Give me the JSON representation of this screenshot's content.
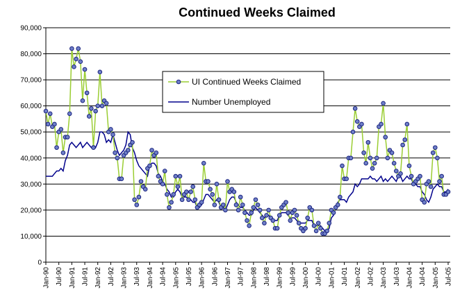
{
  "chart_data": {
    "type": "line",
    "title": "Continued Weeks Claimed",
    "categories": [
      "Jan-90",
      null,
      null,
      null,
      null,
      null,
      "Jul-90",
      null,
      null,
      null,
      null,
      null,
      "Jan-91",
      null,
      null,
      null,
      null,
      null,
      "Jul-91",
      null,
      null,
      null,
      null,
      null,
      "Jan-92",
      null,
      null,
      null,
      null,
      null,
      "Jul-92",
      null,
      null,
      null,
      null,
      null,
      "Jan-93",
      null,
      null,
      null,
      null,
      null,
      "Jul-93",
      null,
      null,
      null,
      null,
      null,
      "Jan-94",
      null,
      null,
      null,
      null,
      null,
      "Jul-94",
      null,
      null,
      null,
      null,
      null,
      "Jan-95",
      null,
      null,
      null,
      null,
      null,
      "Jul-95",
      null,
      null,
      null,
      null,
      null,
      "Jan-96",
      null,
      null,
      null,
      null,
      null,
      "Jul-96",
      null,
      null,
      null,
      null,
      null,
      "Jan-97",
      null,
      null,
      null,
      null,
      null,
      "Jul-97",
      null,
      null,
      null,
      null,
      null,
      "Jan-98",
      null,
      null,
      null,
      null,
      null,
      "Jul-98",
      null,
      null,
      null,
      null,
      null,
      "Jan-99",
      null,
      null,
      null,
      null,
      null,
      "Jul-99",
      null,
      null,
      null,
      null,
      null,
      "Jan-00",
      null,
      null,
      null,
      null,
      null,
      "Jul-00",
      null,
      null,
      null,
      null,
      null,
      "Jan-01",
      null,
      null,
      null,
      null,
      null,
      "Jul-01",
      null,
      null,
      null,
      null,
      null,
      "Jan-02",
      null,
      null,
      null,
      null,
      null,
      "Jul-02",
      null,
      null,
      null,
      null,
      null,
      "Jan-03",
      null,
      null,
      null,
      null,
      null,
      "Jul-03",
      null,
      null,
      null,
      null,
      null,
      "Jan-04",
      null,
      null,
      null,
      null,
      null,
      "Jul-04",
      null,
      null,
      null,
      null,
      null,
      "Jan-05",
      null,
      null,
      null,
      null,
      null,
      "Jul-05"
    ],
    "series": [
      {
        "name": "UI Continued Weeks Claimed",
        "color": "#9acd32",
        "marker_fill": "#6f7fc8",
        "marker_stroke": "#1a237e",
        "values": [
          58000,
          53000,
          57000,
          52000,
          53000,
          44000,
          50000,
          51000,
          42000,
          48000,
          48000,
          57000,
          82000,
          75000,
          78000,
          82000,
          77000,
          62000,
          74000,
          65000,
          56000,
          59000,
          44000,
          58000,
          60000,
          73000,
          60000,
          62000,
          61000,
          50000,
          51000,
          49000,
          42000,
          40000,
          32000,
          32000,
          41000,
          42000,
          43000,
          45000,
          46000,
          24000,
          22000,
          25000,
          31000,
          29000,
          28000,
          36000,
          37000,
          43000,
          41000,
          42000,
          33000,
          31000,
          30000,
          35000,
          26000,
          21000,
          23000,
          26000,
          33000,
          29000,
          33000,
          24000,
          26000,
          27000,
          24000,
          27000,
          29000,
          24000,
          21000,
          22000,
          23000,
          38000,
          31000,
          31000,
          28000,
          26000,
          22000,
          30000,
          24000,
          21000,
          22000,
          20000,
          31000,
          27000,
          28000,
          27000,
          22000,
          20000,
          25000,
          22000,
          19000,
          16000,
          14000,
          19000,
          21000,
          24000,
          22000,
          20000,
          17000,
          15000,
          18000,
          20000,
          17000,
          16000,
          13000,
          13000,
          18000,
          21000,
          22000,
          23000,
          19000,
          16000,
          19000,
          20000,
          18000,
          15000,
          13000,
          12000,
          13000,
          17000,
          21000,
          20000,
          14000,
          12000,
          15000,
          13000,
          11000,
          11000,
          12000,
          15000,
          20000,
          19000,
          21000,
          22000,
          25000,
          37000,
          32000,
          32000,
          40000,
          40000,
          50000,
          59000,
          54000,
          52000,
          53000,
          42000,
          38000,
          46000,
          40000,
          36000,
          38000,
          40000,
          52000,
          53000,
          61000,
          48000,
          40000,
          43000,
          42000,
          38000,
          35000,
          33000,
          34000,
          45000,
          47000,
          53000,
          37000,
          33000,
          30000,
          31000,
          32000,
          33000,
          24000,
          23000,
          30000,
          31000,
          29000,
          42000,
          44000,
          40000,
          31000,
          33000,
          26000,
          26000,
          27000
        ]
      },
      {
        "name": "Number Unemployed",
        "color": "#00008b",
        "values": [
          33000,
          33000,
          33000,
          33000,
          34000,
          35000,
          35000,
          36000,
          35000,
          39000,
          41000,
          45000,
          46000,
          45000,
          44000,
          45000,
          46000,
          44000,
          45000,
          46000,
          45000,
          44000,
          45000,
          44000,
          46000,
          50000,
          50000,
          49000,
          46000,
          47000,
          46000,
          49000,
          46000,
          43000,
          41000,
          42000,
          43000,
          45000,
          50000,
          49000,
          44000,
          42000,
          39000,
          37000,
          36000,
          35000,
          34000,
          33000,
          37000,
          38000,
          38000,
          37000,
          34000,
          33000,
          31000,
          30000,
          28000,
          27000,
          25000,
          25000,
          27000,
          28000,
          27000,
          25000,
          25000,
          25000,
          24000,
          24000,
          23000,
          23000,
          21000,
          21000,
          22000,
          24000,
          26000,
          26000,
          25000,
          24000,
          23000,
          24000,
          23000,
          21000,
          21000,
          20000,
          22000,
          24000,
          25000,
          25000,
          23000,
          22000,
          21000,
          21000,
          20000,
          19000,
          18000,
          18000,
          20000,
          21000,
          20000,
          19000,
          18000,
          17000,
          18000,
          18000,
          17000,
          16000,
          16000,
          16000,
          18000,
          19000,
          19000,
          19000,
          18000,
          17000,
          17000,
          17000,
          16000,
          15000,
          15000,
          15000,
          15000,
          16000,
          16000,
          16000,
          14000,
          14000,
          14000,
          14000,
          13000,
          12000,
          12000,
          13000,
          17000,
          18000,
          21000,
          23000,
          24000,
          24000,
          24000,
          23000,
          25000,
          26000,
          27000,
          30000,
          29000,
          30000,
          32000,
          32000,
          32000,
          32000,
          33000,
          32000,
          32000,
          31000,
          32000,
          33000,
          31000,
          32000,
          31000,
          32000,
          33000,
          32000,
          31000,
          33000,
          33000,
          31000,
          32000,
          33000,
          32000,
          32000,
          30000,
          30000,
          29000,
          29000,
          27000,
          26000,
          24000,
          23000,
          25000,
          28000,
          29000,
          30000,
          29000,
          29000,
          27000,
          27000,
          28000
        ]
      }
    ],
    "ylim": [
      0,
      90000
    ],
    "yticks": [
      0,
      {
        "value": 10000,
        "label": "10,000"
      },
      {
        "value": 20000,
        "label": "20,000"
      },
      {
        "value": 30000,
        "label": "30,000"
      },
      {
        "value": 40000,
        "label": "40,000"
      },
      {
        "value": 50000,
        "label": "50,000"
      },
      {
        "value": 60000,
        "label": "60,000"
      },
      {
        "value": 70000,
        "label": "70,000"
      },
      {
        "value": 80000,
        "label": "80,000"
      },
      {
        "value": 90000,
        "label": "90,000"
      }
    ],
    "grid": true
  }
}
